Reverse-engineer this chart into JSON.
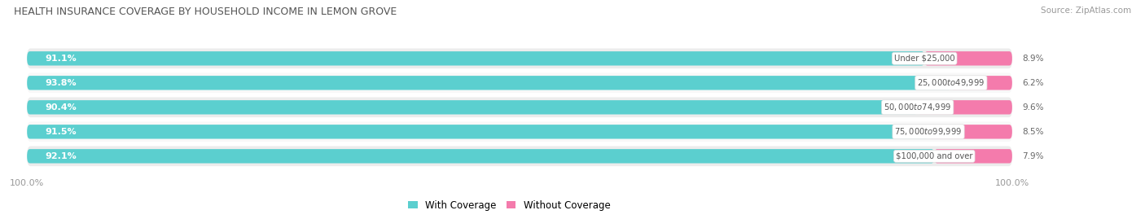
{
  "title": "HEALTH INSURANCE COVERAGE BY HOUSEHOLD INCOME IN LEMON GROVE",
  "source": "Source: ZipAtlas.com",
  "categories": [
    "Under $25,000",
    "$25,000 to $49,999",
    "$50,000 to $74,999",
    "$75,000 to $99,999",
    "$100,000 and over"
  ],
  "with_coverage": [
    91.1,
    93.8,
    90.4,
    91.5,
    92.1
  ],
  "without_coverage": [
    8.9,
    6.2,
    9.6,
    8.5,
    7.9
  ],
  "teal_color": "#5BCFCF",
  "pink_color": "#F47BAC",
  "row_bg_even": "#ECECEC",
  "row_bg_odd": "#F8F8F8",
  "title_color": "#555555",
  "value_color_teal": "#FFFFFF",
  "value_color_pink": "#FFFFFF",
  "label_color": "#555555",
  "tick_label_color": "#999999",
  "legend_teal": "#5BCFCF",
  "legend_pink": "#F47BAC",
  "axis_total": 100.0
}
